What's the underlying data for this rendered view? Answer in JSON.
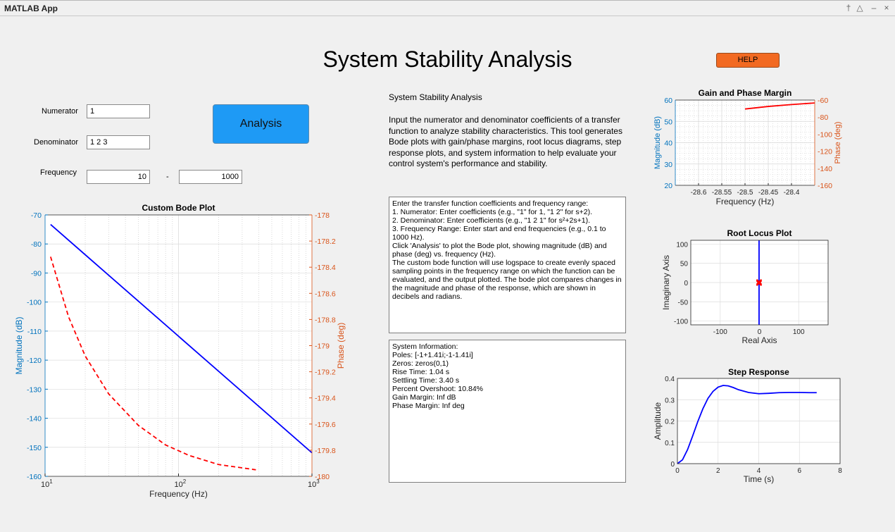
{
  "window": {
    "title": "MATLAB App",
    "controls": [
      "pin-icon",
      "maximize-icon",
      "minimize-icon",
      "close-icon"
    ],
    "control_glyphs": [
      "†",
      "△",
      "–",
      "×"
    ]
  },
  "header": {
    "title": "System Stability Analysis",
    "help_label": "HELP"
  },
  "inputs": {
    "numerator_label": "Numerator",
    "numerator_value": "1",
    "denominator_label": "Denominator",
    "denominator_value": "1 2 3",
    "frequency_label": "Frequency",
    "freq_start": "10",
    "freq_dash": "-",
    "freq_end": "1000",
    "analysis_label": "Analysis"
  },
  "description": {
    "title": "System Stability Analysis",
    "body": "Input the numerator and denominator coefficients of a transfer function to analyze stability characteristics. This tool generates Bode plots with gain/phase margins, root locus diagrams, step response plots, and system information to help evaluate your control system's performance and stability."
  },
  "instructions": "Enter the transfer function coefficients and frequency range:\n1. Numerator: Enter coefficients (e.g., \"1\" for 1, \"1 2\" for s+2).\n2. Denominator: Enter coefficients (e.g., \"1 2 1\" for s²+2s+1).\n3. Frequency Range: Enter start and end frequencies (e.g., 0.1 to 1000 Hz).\nClick 'Analysis' to plot the Bode plot, showing magnitude (dB) and phase (deg) vs. frequency (Hz).\nThe custom bode function will use logspace to create evenly spaced sampling points in the frequency range on which the function can be evaluated, and the output plotted. The bode plot compares changes in the magnitude and phase of the response, which are shown in decibels and radians.",
  "system_info": "System Information:\nPoles: [-1+1.41i;-1-1.41i]\nZeros: zeros(0,1)\nRise Time: 1.04 s\nSettling Time: 3.40 s\nPercent Overshoot: 10.84%\nGain Margin: Inf dB\nPhase Margin: Inf deg",
  "colors": {
    "help": "#f26a22",
    "analysis": "#1e9af5",
    "magnitude_axis": "#0072bd",
    "phase_axis": "#d95319",
    "mag_line": "#0000ff",
    "phase_line": "#ff0000"
  },
  "chart_data": [
    {
      "type": "line",
      "title": "Custom Bode Plot",
      "xlabel": "Frequency (Hz)",
      "ylabel": "Magnitude (dB)",
      "y2label": "Phase (deg)",
      "xscale": "log",
      "xlim": [
        10,
        1000
      ],
      "ylim": [
        -160,
        -70
      ],
      "y2lim": [
        -180,
        -178
      ],
      "xticks": [
        {
          "base": "10",
          "exp": "1"
        },
        {
          "base": "10",
          "exp": "2"
        },
        {
          "base": "10",
          "exp": "3"
        }
      ],
      "yticks": [
        "-70",
        "-80",
        "-90",
        "-100",
        "-110",
        "-120",
        "-130",
        "-140",
        "-150",
        "-160"
      ],
      "y2ticks": [
        "-178",
        "-178.2",
        "-178.4",
        "-178.6",
        "-178.8",
        "-179",
        "-179.2",
        "-179.4",
        "-179.6",
        "-179.8",
        "-180"
      ],
      "grid": true,
      "series": [
        {
          "x": [
            11,
            1000
          ],
          "y": [
            -73.3,
            -151.9
          ]
        },
        {
          "axis": "right",
          "style": "dashed",
          "x": [
            11,
            15,
            20,
            30,
            50,
            80,
            120,
            200,
            380
          ],
          "y": [
            -178.32,
            -178.78,
            -179.08,
            -179.37,
            -179.61,
            -179.76,
            -179.84,
            -179.91,
            -179.95
          ]
        }
      ]
    },
    {
      "type": "line",
      "title": "Gain and Phase Margin",
      "xlabel": "Frequency (Hz)",
      "ylabel": "Magnitude (dB)",
      "y2label": "Phase (deg)",
      "xlim": [
        -28.65,
        -28.35
      ],
      "ylim": [
        20,
        60
      ],
      "y2lim": [
        -160,
        -60
      ],
      "xticks": [
        "-28.6",
        "-28.55",
        "-28.5",
        "-28.45",
        "-28.4"
      ],
      "yticks": [
        "60",
        "50",
        "40",
        "30",
        "20"
      ],
      "y2ticks": [
        "-60",
        "-80",
        "-100",
        "-120",
        "-140",
        "-160"
      ],
      "grid": true,
      "series": [
        {
          "axis": "right",
          "x": [
            -28.5,
            -28.45,
            -28.4,
            -28.35
          ],
          "y": [
            -70.5,
            -67.5,
            -65.3,
            -63.4
          ]
        }
      ]
    },
    {
      "type": "scatter",
      "title": "Root Locus Plot",
      "xlabel": "Real Axis",
      "ylabel": "Imaginary Axis",
      "xlim": [
        -175,
        175
      ],
      "ylim": [
        -110,
        110
      ],
      "xticks": [
        "-100",
        "0",
        "100"
      ],
      "yticks": [
        "100",
        "50",
        "0",
        "-50",
        "-100"
      ],
      "grid": true,
      "series": [
        {
          "x": [
            -1,
            -1
          ],
          "y": [
            -110,
            110
          ]
        },
        {
          "marker": "x",
          "x": [
            -1,
            -1
          ],
          "y": [
            1.41,
            -1.41
          ]
        }
      ]
    },
    {
      "type": "line",
      "title": "Step Response",
      "xlabel": "Time (s)",
      "ylabel": "Amplitude",
      "xlim": [
        0,
        8
      ],
      "ylim": [
        0,
        0.4
      ],
      "xticks": [
        "0",
        "2",
        "4",
        "6",
        "8"
      ],
      "yticks": [
        "0.4",
        "0.3",
        "0.2",
        "0.1",
        "0"
      ],
      "grid": true,
      "series": [
        {
          "x": [
            0,
            0.25,
            0.5,
            0.75,
            1,
            1.25,
            1.5,
            1.75,
            2,
            2.25,
            2.5,
            2.75,
            3,
            3.5,
            4,
            4.5,
            5,
            5.5,
            6,
            6.5,
            6.85
          ],
          "y": [
            0,
            0.018,
            0.066,
            0.13,
            0.197,
            0.257,
            0.306,
            0.339,
            0.359,
            0.367,
            0.365,
            0.357,
            0.347,
            0.334,
            0.328,
            0.33,
            0.333,
            0.334,
            0.334,
            0.333,
            0.333
          ]
        }
      ]
    }
  ]
}
